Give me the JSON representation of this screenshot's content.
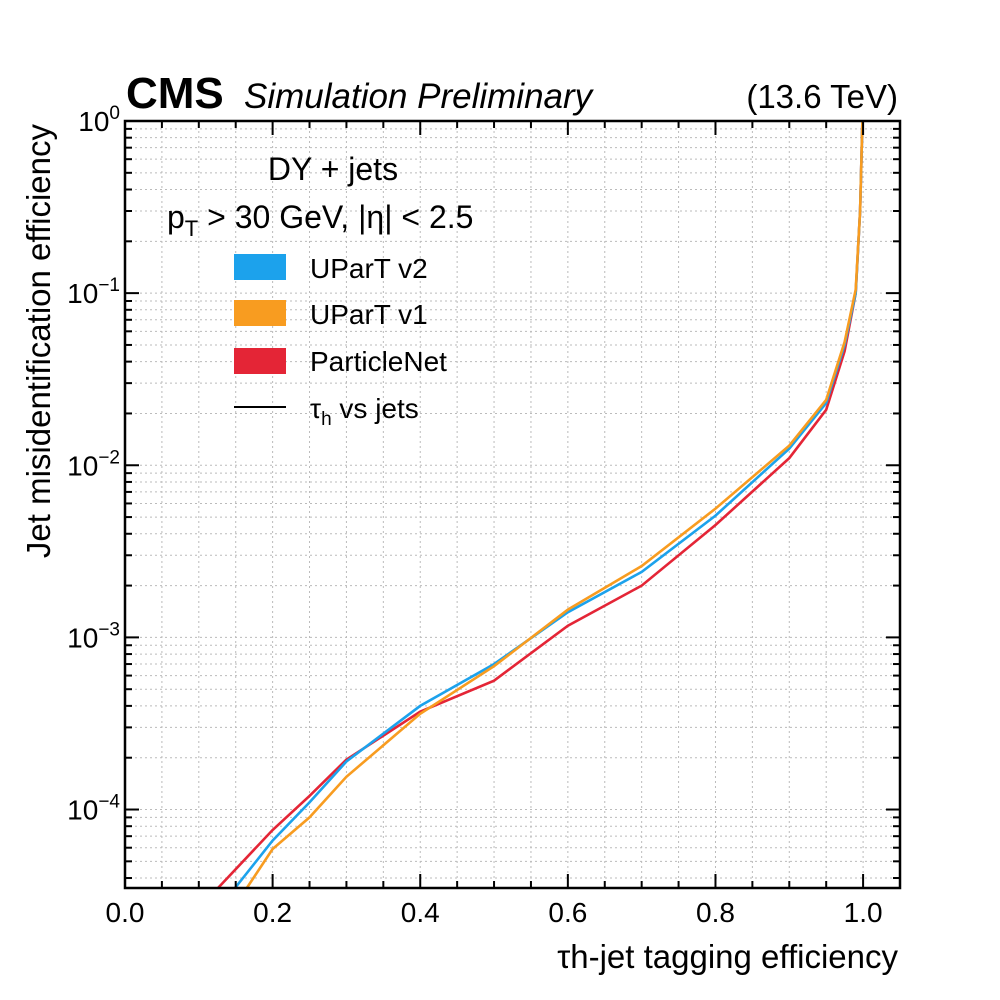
{
  "header": {
    "experiment": "CMS",
    "status": "Simulation Preliminary",
    "energy": "(13.6 TeV)"
  },
  "chart_data": {
    "type": "line",
    "xlabel": "τh-jet tagging efficiency",
    "ylabel": "Jet misidentification efficiency",
    "xlim": [
      0.0,
      1.05
    ],
    "ylim": [
      3.5e-05,
      1.0
    ],
    "yscale": "log",
    "grid": true,
    "x_ticks": [
      "0.0",
      "0.2",
      "0.4",
      "0.6",
      "0.8",
      "1.0"
    ],
    "y_ticks": [
      {
        "base": "10",
        "exp": "0"
      },
      {
        "base": "10",
        "exp": "−1"
      },
      {
        "base": "10",
        "exp": "−2"
      },
      {
        "base": "10",
        "exp": "−3"
      },
      {
        "base": "10",
        "exp": "−4"
      }
    ],
    "legend": {
      "placement": "top-left",
      "title_line1": "DY + jets",
      "title_line2_main": "p",
      "title_line2_sub": "T",
      "title_line2_rest": " > 30 GeV, |η| < 2.5",
      "line_entry_main": "τ",
      "line_entry_sub": "h",
      "line_entry_rest": " vs jets"
    },
    "series": [
      {
        "name": "UParT v2",
        "color": "#1ca2ec",
        "x": [
          0.149,
          0.2,
          0.25,
          0.3,
          0.4,
          0.5,
          0.6,
          0.7,
          0.8,
          0.9,
          0.95,
          0.975,
          0.99,
          0.996,
          0.999
        ],
        "y": [
          3.5e-05,
          6.6e-05,
          0.00011,
          0.00019,
          0.0004,
          0.0007,
          0.0014,
          0.0024,
          0.0051,
          0.0125,
          0.023,
          0.05,
          0.1,
          0.3,
          1.0
        ]
      },
      {
        "name": "UParT v1",
        "color": "#f89c20",
        "x": [
          0.165,
          0.2,
          0.25,
          0.3,
          0.4,
          0.5,
          0.6,
          0.7,
          0.8,
          0.9,
          0.95,
          0.975,
          0.99,
          0.996,
          0.999
        ],
        "y": [
          3.5e-05,
          5.9e-05,
          9e-05,
          0.000155,
          0.00036,
          0.00068,
          0.00145,
          0.0026,
          0.0056,
          0.013,
          0.024,
          0.052,
          0.105,
          0.3,
          1.0
        ]
      },
      {
        "name": "ParticleNet",
        "color": "#e42536",
        "x": [
          0.126,
          0.2,
          0.25,
          0.3,
          0.4,
          0.5,
          0.6,
          0.7,
          0.8,
          0.9,
          0.95,
          0.975,
          0.99,
          0.996,
          0.999
        ],
        "y": [
          3.5e-05,
          7.6e-05,
          0.00012,
          0.000195,
          0.00037,
          0.00056,
          0.00117,
          0.002,
          0.0045,
          0.011,
          0.021,
          0.046,
          0.1,
          0.3,
          1.0
        ]
      }
    ]
  }
}
